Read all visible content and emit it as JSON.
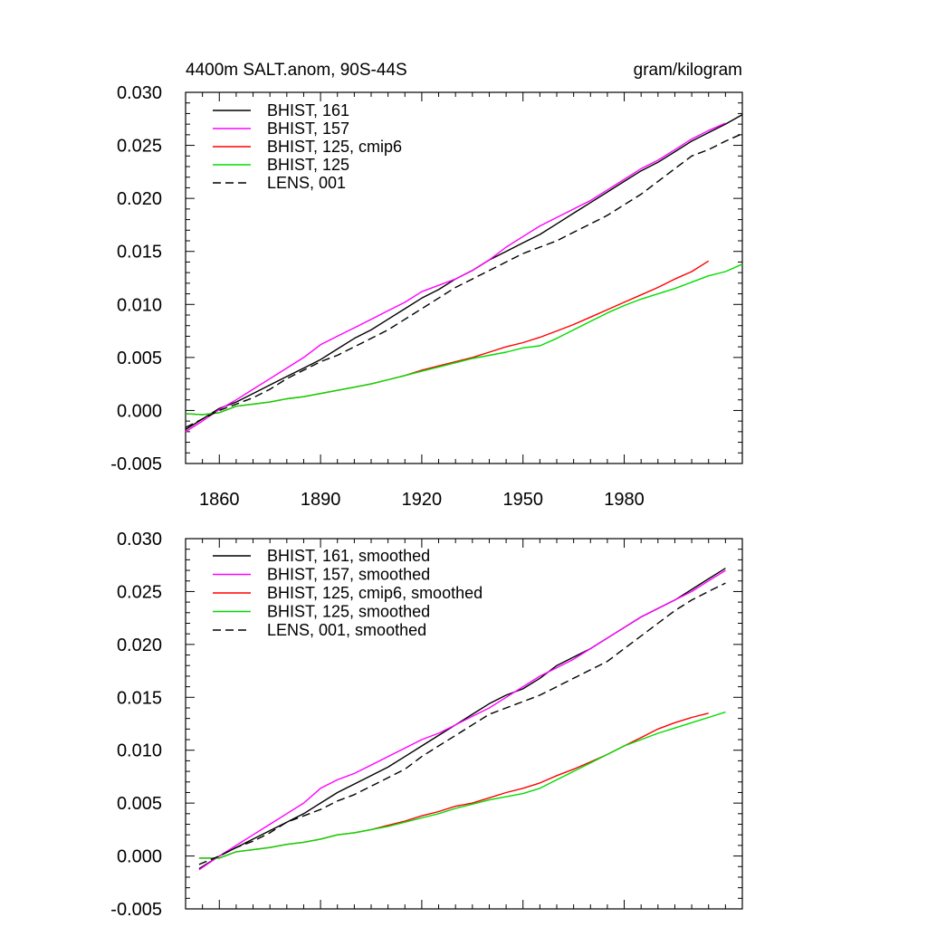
{
  "chart_data": [
    {
      "type": "line",
      "title": "4400m SALT.anom, 90S-44S",
      "units": "gram/kilogram",
      "xlabel": "",
      "ylabel": "",
      "xlim": [
        1850,
        2015
      ],
      "ylim": [
        -0.005,
        0.03
      ],
      "x_ticks": [
        1860,
        1890,
        1920,
        1950,
        1980
      ],
      "x_tick_labels": [
        "1860",
        "1890",
        "1920",
        "1950",
        "1980"
      ],
      "y_ticks": [
        -0.005,
        0.0,
        0.005,
        0.01,
        0.015,
        0.02,
        0.025,
        0.03
      ],
      "y_tick_labels": [
        "-0.005",
        "0.000",
        "0.005",
        "0.010",
        "0.015",
        "0.020",
        "0.025",
        "0.030"
      ],
      "legend_position": "top-left",
      "series": [
        {
          "name": "BHIST, 161",
          "color": "#000000",
          "dash": "solid",
          "x": [
            1850,
            1855,
            1860,
            1865,
            1870,
            1875,
            1880,
            1885,
            1890,
            1895,
            1900,
            1905,
            1910,
            1915,
            1920,
            1925,
            1930,
            1935,
            1940,
            1945,
            1950,
            1955,
            1960,
            1965,
            1970,
            1975,
            1980,
            1985,
            1990,
            1995,
            2000,
            2005,
            2010,
            2015
          ],
          "values": [
            -0.0018,
            -0.0008,
            0.0002,
            0.0008,
            0.0016,
            0.0024,
            0.0032,
            0.004,
            0.0048,
            0.0058,
            0.0068,
            0.0076,
            0.0086,
            0.0096,
            0.0106,
            0.0114,
            0.0124,
            0.0132,
            0.0142,
            0.015,
            0.0158,
            0.0166,
            0.0176,
            0.0186,
            0.0196,
            0.0206,
            0.0216,
            0.0226,
            0.0234,
            0.0244,
            0.0254,
            0.0262,
            0.027,
            0.0279
          ]
        },
        {
          "name": "BHIST, 157",
          "color": "#ff00ff",
          "dash": "solid",
          "x": [
            1850,
            1855,
            1860,
            1865,
            1870,
            1875,
            1880,
            1885,
            1890,
            1895,
            1900,
            1905,
            1910,
            1915,
            1920,
            1925,
            1930,
            1935,
            1940,
            1945,
            1950,
            1955,
            1960,
            1965,
            1970,
            1975,
            1980,
            1985,
            1990,
            1995,
            2000,
            2005,
            2010
          ],
          "values": [
            -0.002,
            -0.001,
            0.0001,
            0.001,
            0.002,
            0.003,
            0.004,
            0.005,
            0.0062,
            0.007,
            0.0078,
            0.0086,
            0.0094,
            0.0102,
            0.0112,
            0.0118,
            0.0124,
            0.0132,
            0.0142,
            0.0154,
            0.0164,
            0.0174,
            0.0182,
            0.019,
            0.0198,
            0.0208,
            0.0218,
            0.0228,
            0.0236,
            0.0246,
            0.0256,
            0.0264,
            0.0271
          ]
        },
        {
          "name": "BHIST, 125, cmip6",
          "color": "#ff0000",
          "dash": "solid",
          "x": [
            1850,
            1855,
            1860,
            1865,
            1870,
            1875,
            1880,
            1885,
            1890,
            1895,
            1900,
            1905,
            1910,
            1915,
            1920,
            1925,
            1930,
            1935,
            1940,
            1945,
            1950,
            1955,
            1960,
            1965,
            1970,
            1975,
            1980,
            1985,
            1990,
            1995,
            2000,
            2005
          ],
          "values": [
            -0.0003,
            -0.0004,
            -0.0002,
            0.0004,
            0.0006,
            0.0008,
            0.0011,
            0.0013,
            0.0016,
            0.0019,
            0.0022,
            0.0025,
            0.0029,
            0.0033,
            0.0038,
            0.0042,
            0.0046,
            0.005,
            0.0055,
            0.006,
            0.0064,
            0.0069,
            0.0075,
            0.0081,
            0.0088,
            0.0095,
            0.0102,
            0.0109,
            0.0116,
            0.0124,
            0.0131,
            0.0141
          ]
        },
        {
          "name": "BHIST, 125",
          "color": "#00dd00",
          "dash": "solid",
          "x": [
            1850,
            1855,
            1860,
            1865,
            1870,
            1875,
            1880,
            1885,
            1890,
            1895,
            1900,
            1905,
            1910,
            1915,
            1920,
            1925,
            1930,
            1935,
            1940,
            1945,
            1950,
            1955,
            1960,
            1965,
            1970,
            1975,
            1980,
            1985,
            1990,
            1995,
            2000,
            2005,
            2010,
            2015
          ],
          "values": [
            -0.0003,
            -0.0004,
            -0.0002,
            0.0004,
            0.0006,
            0.0008,
            0.0011,
            0.0013,
            0.0016,
            0.0019,
            0.0022,
            0.0025,
            0.0029,
            0.0033,
            0.0037,
            0.0041,
            0.0045,
            0.0049,
            0.0052,
            0.0055,
            0.0059,
            0.0061,
            0.0068,
            0.0076,
            0.0084,
            0.0092,
            0.0099,
            0.0105,
            0.011,
            0.0115,
            0.0121,
            0.0127,
            0.0131,
            0.0138
          ]
        },
        {
          "name": "LENS, 001",
          "color": "#000000",
          "dash": "dashed",
          "x": [
            1850,
            1855,
            1860,
            1865,
            1870,
            1875,
            1880,
            1885,
            1890,
            1895,
            1900,
            1905,
            1910,
            1915,
            1920,
            1925,
            1930,
            1935,
            1940,
            1945,
            1950,
            1955,
            1960,
            1965,
            1970,
            1975,
            1980,
            1985,
            1990,
            1995,
            2000,
            2005,
            2010,
            2015
          ],
          "values": [
            -0.0016,
            -0.0008,
            0.0,
            0.0006,
            0.0012,
            0.002,
            0.003,
            0.0038,
            0.0046,
            0.0052,
            0.006,
            0.0068,
            0.0076,
            0.0086,
            0.0096,
            0.0106,
            0.0116,
            0.0124,
            0.0132,
            0.014,
            0.0148,
            0.0154,
            0.016,
            0.0168,
            0.0176,
            0.0184,
            0.0194,
            0.0204,
            0.0216,
            0.0228,
            0.024,
            0.0246,
            0.0254,
            0.0261
          ]
        }
      ]
    },
    {
      "type": "line",
      "title": "",
      "xlabel": "",
      "ylabel": "",
      "xlim": [
        1850,
        2015
      ],
      "ylim": [
        -0.005,
        0.03
      ],
      "x_ticks": [
        1860,
        1890,
        1920,
        1950,
        1980
      ],
      "y_ticks": [
        -0.005,
        0.0,
        0.005,
        0.01,
        0.015,
        0.02,
        0.025,
        0.03
      ],
      "y_tick_labels": [
        "-0.005",
        "0.000",
        "0.005",
        "0.010",
        "0.015",
        "0.020",
        "0.025",
        "0.030"
      ],
      "legend_position": "top-left",
      "series": [
        {
          "name": "BHIST, 161, smoothed",
          "color": "#000000",
          "dash": "solid",
          "x": [
            1854,
            1860,
            1865,
            1870,
            1875,
            1880,
            1885,
            1890,
            1895,
            1900,
            1905,
            1910,
            1915,
            1920,
            1925,
            1930,
            1935,
            1940,
            1945,
            1950,
            1955,
            1960,
            1965,
            1970,
            1975,
            1980,
            1985,
            1990,
            1995,
            2000,
            2005,
            2010
          ],
          "values": [
            -0.0012,
            0.0,
            0.0008,
            0.0016,
            0.0024,
            0.0032,
            0.004,
            0.005,
            0.006,
            0.0068,
            0.0076,
            0.0084,
            0.0094,
            0.0104,
            0.0114,
            0.0124,
            0.0134,
            0.0144,
            0.0152,
            0.0158,
            0.0168,
            0.018,
            0.0188,
            0.0196,
            0.0206,
            0.0216,
            0.0226,
            0.0234,
            0.0242,
            0.0252,
            0.0262,
            0.0272
          ]
        },
        {
          "name": "BHIST, 157, smoothed",
          "color": "#ff00ff",
          "dash": "solid",
          "x": [
            1854,
            1860,
            1865,
            1870,
            1875,
            1880,
            1885,
            1890,
            1895,
            1900,
            1905,
            1910,
            1915,
            1920,
            1925,
            1930,
            1935,
            1940,
            1945,
            1950,
            1955,
            1960,
            1965,
            1970,
            1975,
            1980,
            1985,
            1990,
            1995,
            2000,
            2005,
            2010
          ],
          "values": [
            -0.0013,
            0.0,
            0.001,
            0.002,
            0.003,
            0.004,
            0.005,
            0.0064,
            0.0072,
            0.0078,
            0.0086,
            0.0094,
            0.0102,
            0.011,
            0.0116,
            0.0124,
            0.0132,
            0.014,
            0.015,
            0.016,
            0.017,
            0.0178,
            0.0186,
            0.0196,
            0.0206,
            0.0216,
            0.0226,
            0.0234,
            0.0242,
            0.025,
            0.026,
            0.027
          ]
        },
        {
          "name": "BHIST, 125, cmip6, smoothed",
          "color": "#ff0000",
          "dash": "solid",
          "x": [
            1854,
            1860,
            1865,
            1870,
            1875,
            1880,
            1885,
            1890,
            1895,
            1900,
            1905,
            1910,
            1915,
            1920,
            1925,
            1930,
            1935,
            1940,
            1945,
            1950,
            1955,
            1960,
            1965,
            1970,
            1975,
            1980,
            1985,
            1990,
            1995,
            2000,
            2005
          ],
          "values": [
            -0.0002,
            -0.0002,
            0.0004,
            0.0006,
            0.0008,
            0.0011,
            0.0013,
            0.0016,
            0.002,
            0.0022,
            0.0025,
            0.0029,
            0.0033,
            0.0038,
            0.0042,
            0.0047,
            0.005,
            0.0055,
            0.006,
            0.0064,
            0.0069,
            0.0076,
            0.0082,
            0.0089,
            0.0096,
            0.0104,
            0.0112,
            0.012,
            0.0126,
            0.0131,
            0.0135
          ]
        },
        {
          "name": "BHIST, 125, smoothed",
          "color": "#00dd00",
          "dash": "solid",
          "x": [
            1854,
            1860,
            1865,
            1870,
            1875,
            1880,
            1885,
            1890,
            1895,
            1900,
            1905,
            1910,
            1915,
            1920,
            1925,
            1930,
            1935,
            1940,
            1945,
            1950,
            1955,
            1960,
            1965,
            1970,
            1975,
            1980,
            1985,
            1990,
            1995,
            2000,
            2005,
            2010
          ],
          "values": [
            -0.0002,
            -0.0002,
            0.0004,
            0.0006,
            0.0008,
            0.0011,
            0.0013,
            0.0016,
            0.002,
            0.0022,
            0.0025,
            0.0028,
            0.0032,
            0.0036,
            0.004,
            0.0045,
            0.0049,
            0.0053,
            0.0056,
            0.0059,
            0.0064,
            0.0072,
            0.008,
            0.0088,
            0.0096,
            0.0104,
            0.011,
            0.0116,
            0.0121,
            0.0126,
            0.0131,
            0.0136
          ]
        },
        {
          "name": "LENS, 001, smoothed",
          "color": "#000000",
          "dash": "dashed",
          "x": [
            1854,
            1860,
            1865,
            1870,
            1875,
            1880,
            1885,
            1890,
            1895,
            1900,
            1905,
            1910,
            1915,
            1920,
            1925,
            1930,
            1935,
            1940,
            1945,
            1950,
            1955,
            1960,
            1965,
            1970,
            1975,
            1980,
            1985,
            1990,
            1995,
            2000,
            2005,
            2010
          ],
          "values": [
            -0.0008,
            0.0,
            0.0008,
            0.0014,
            0.0022,
            0.0032,
            0.0038,
            0.0044,
            0.0052,
            0.0058,
            0.0066,
            0.0074,
            0.0082,
            0.0094,
            0.0104,
            0.0114,
            0.0124,
            0.0134,
            0.014,
            0.0146,
            0.0152,
            0.016,
            0.0168,
            0.0176,
            0.0184,
            0.0196,
            0.0208,
            0.022,
            0.0232,
            0.0242,
            0.025,
            0.0258
          ]
        }
      ]
    }
  ]
}
